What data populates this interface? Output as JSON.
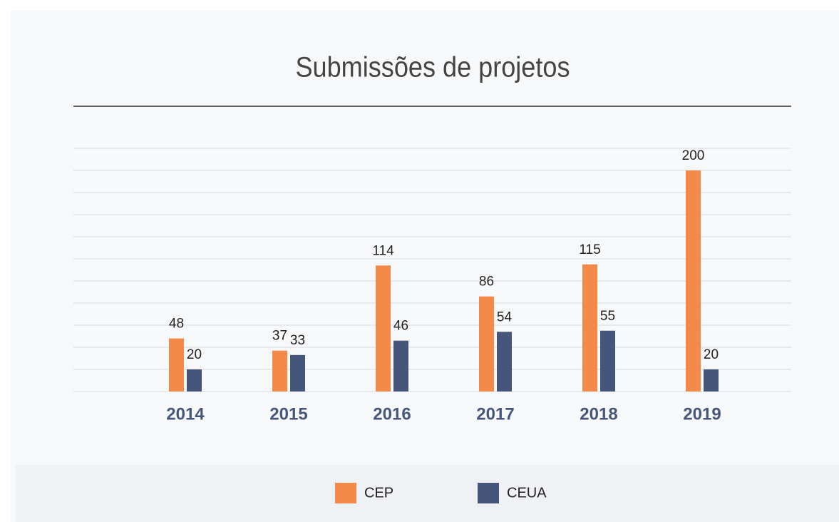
{
  "chart_data": {
    "type": "bar",
    "title": "Submissões de projetos",
    "categories": [
      "2014",
      "2015",
      "2016",
      "2017",
      "2018",
      "2019"
    ],
    "series": [
      {
        "name": "CEP",
        "color": "#f5894a",
        "values": [
          48,
          37,
          114,
          86,
          115,
          200
        ]
      },
      {
        "name": "CEUA",
        "color": "#46567a",
        "values": [
          20,
          33,
          46,
          54,
          55,
          20
        ]
      }
    ],
    "ylim": [
      0,
      220
    ],
    "yticks": [
      0,
      20,
      40,
      60,
      80,
      100,
      120,
      140,
      160,
      180,
      200,
      220
    ],
    "grid": true
  }
}
